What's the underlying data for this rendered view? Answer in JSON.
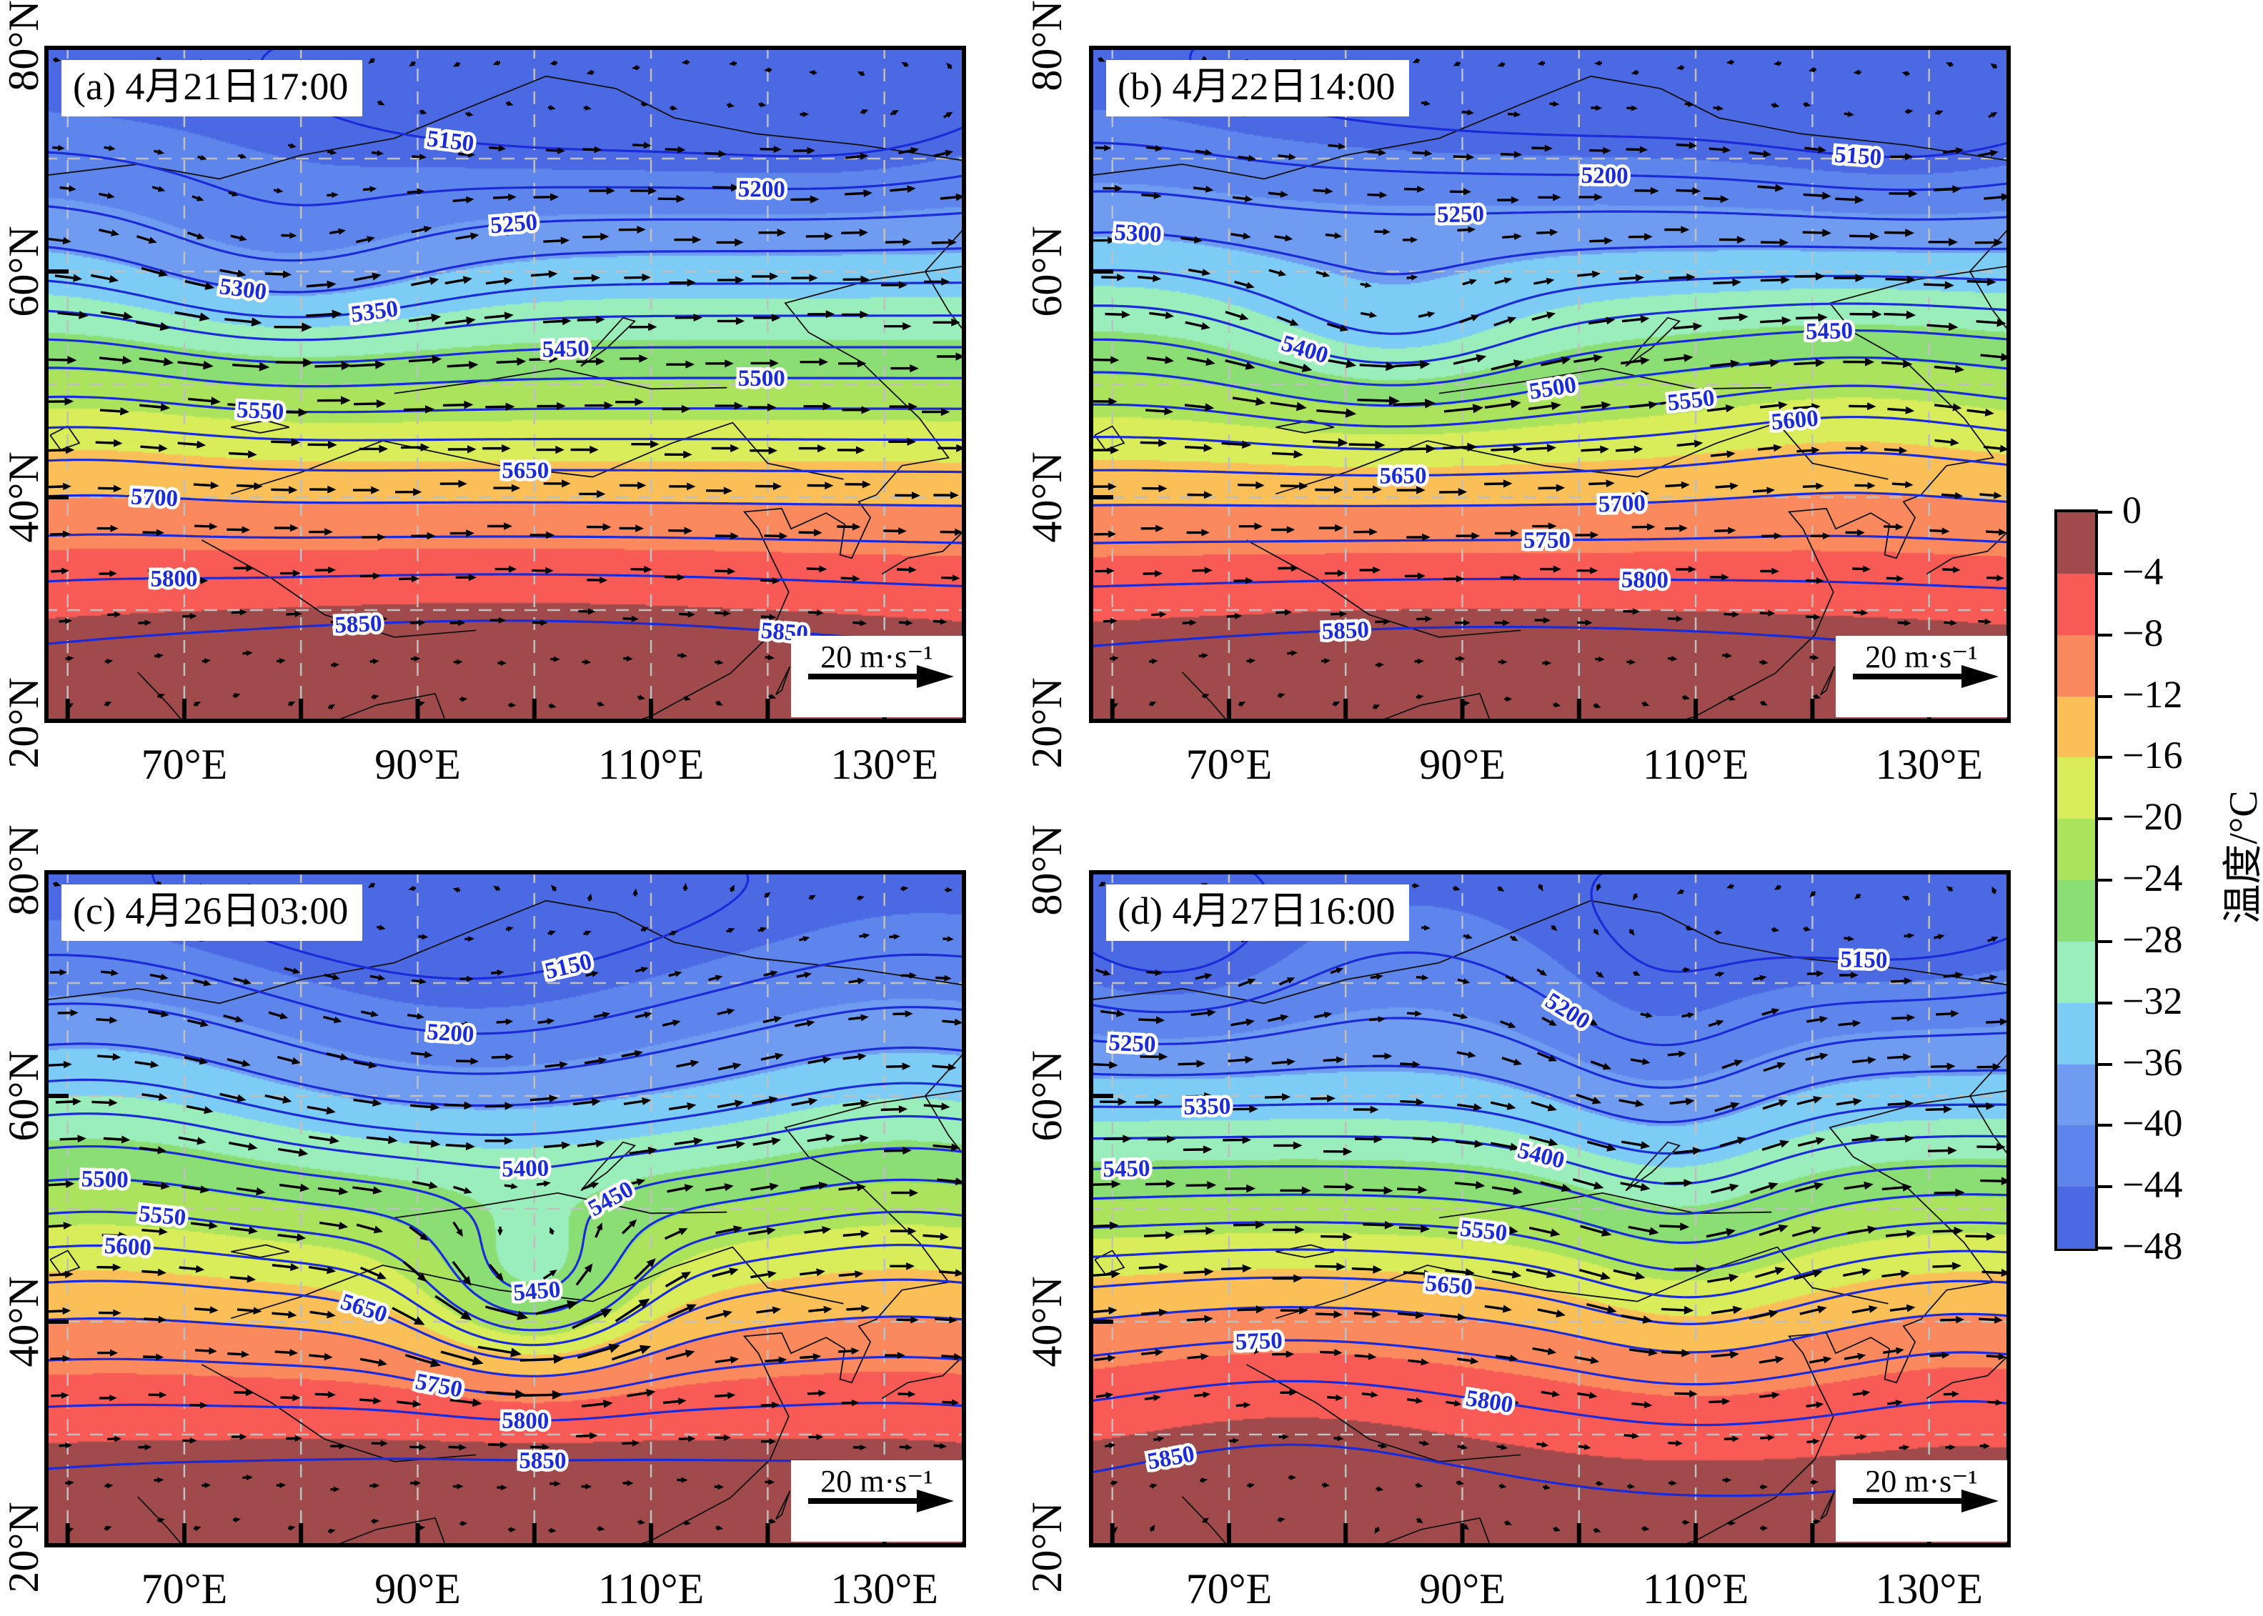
{
  "chart_data": {
    "type": "heatmap",
    "panels": [
      {
        "id": "a",
        "title": "(a) 4月21日17:00",
        "contour_interval_gpm": 50,
        "contour_labels": [
          {
            "value": 5150,
            "u": 0.45,
            "v": 0.06
          },
          {
            "value": 5200,
            "u": 0.78,
            "v": 0.2
          },
          {
            "value": 5250,
            "u": 0.5,
            "v": 0.12
          },
          {
            "value": 5300,
            "u": 0.22,
            "v": 0.3
          },
          {
            "value": 5350,
            "u": 0.34,
            "v": 0.22
          },
          {
            "value": 5450,
            "u": 0.56,
            "v": 0.3
          },
          {
            "value": 5500,
            "u": 0.78,
            "v": 0.26
          },
          {
            "value": 5550,
            "u": 0.24,
            "v": 0.44
          },
          {
            "value": 5650,
            "u": 0.52,
            "v": 0.56
          },
          {
            "value": 5700,
            "u": 0.12,
            "v": 0.66
          },
          {
            "value": 5800,
            "u": 0.14,
            "v": 0.8
          },
          {
            "value": 5850,
            "u": 0.34,
            "v": 0.93
          },
          {
            "value": 5850,
            "u": 0.8,
            "v": 0.87
          }
        ]
      },
      {
        "id": "b",
        "title": "(b) 4月22日14:00",
        "contour_interval_gpm": 50,
        "contour_labels": [
          {
            "value": 5150,
            "u": 0.84,
            "v": 0.1
          },
          {
            "value": 5200,
            "u": 0.56,
            "v": 0.13
          },
          {
            "value": 5250,
            "u": 0.4,
            "v": 0.12
          },
          {
            "value": 5300,
            "u": 0.06,
            "v": 0.06
          },
          {
            "value": 5400,
            "u": 0.24,
            "v": 0.42
          },
          {
            "value": 5450,
            "u": 0.8,
            "v": 0.16
          },
          {
            "value": 5500,
            "u": 0.48,
            "v": 0.33
          },
          {
            "value": 5550,
            "u": 0.64,
            "v": 0.38
          },
          {
            "value": 5600,
            "u": 0.76,
            "v": 0.42
          },
          {
            "value": 5650,
            "u": 0.34,
            "v": 0.68
          },
          {
            "value": 5700,
            "u": 0.58,
            "v": 0.66
          },
          {
            "value": 5750,
            "u": 0.5,
            "v": 0.8
          },
          {
            "value": 5800,
            "u": 0.6,
            "v": 0.9
          },
          {
            "value": 5850,
            "u": 0.28,
            "v": 0.93
          }
        ]
      },
      {
        "id": "c",
        "title": "(c) 4月26日03:00",
        "contour_interval_gpm": 50,
        "contour_labels": [
          {
            "value": 5150,
            "u": 0.56,
            "v": 0.1
          },
          {
            "value": 5200,
            "u": 0.44,
            "v": 0.2
          },
          {
            "value": 5400,
            "u": 0.52,
            "v": 0.34
          },
          {
            "value": 5450,
            "u": 0.62,
            "v": 0.5
          },
          {
            "value": 5450,
            "u": 0.54,
            "v": 0.7
          },
          {
            "value": 5500,
            "u": 0.07,
            "v": 0.36
          },
          {
            "value": 5550,
            "u": 0.13,
            "v": 0.48
          },
          {
            "value": 5600,
            "u": 0.09,
            "v": 0.52
          },
          {
            "value": 5650,
            "u": 0.34,
            "v": 0.68
          },
          {
            "value": 5750,
            "u": 0.42,
            "v": 0.82
          },
          {
            "value": 5800,
            "u": 0.52,
            "v": 0.88
          },
          {
            "value": 5850,
            "u": 0.54,
            "v": 0.95
          }
        ]
      },
      {
        "id": "d",
        "title": "(d) 4月27日16:00",
        "contour_interval_gpm": 50,
        "contour_labels": [
          {
            "value": 5150,
            "u": 0.84,
            "v": 0.06
          },
          {
            "value": 5200,
            "u": 0.58,
            "v": 0.07
          },
          {
            "value": 5250,
            "u": 0.05,
            "v": 0.24
          },
          {
            "value": 5350,
            "u": 0.13,
            "v": 0.32
          },
          {
            "value": 5400,
            "u": 0.5,
            "v": 0.36
          },
          {
            "value": 5450,
            "u": 0.04,
            "v": 0.48
          },
          {
            "value": 5550,
            "u": 0.42,
            "v": 0.62
          },
          {
            "value": 5650,
            "u": 0.38,
            "v": 0.78
          },
          {
            "value": 5750,
            "u": 0.18,
            "v": 0.64
          },
          {
            "value": 5800,
            "u": 0.42,
            "v": 0.92
          },
          {
            "value": 5850,
            "u": 0.1,
            "v": 0.96
          }
        ]
      }
    ],
    "field_model_estimate": {
      "a": {
        "height_features": [
          {
            "a": -70,
            "u": 0.26,
            "v": 0.33,
            "su": 0.13,
            "sv": 0.1
          },
          {
            "a": -55,
            "u": 0.6,
            "v": 0.1,
            "su": 0.22,
            "sv": 0.1
          },
          {
            "a": -40,
            "u": 0.88,
            "v": 0.1,
            "su": 0.12,
            "sv": 0.09
          },
          {
            "a": 35,
            "u": 0.5,
            "v": 0.95,
            "su": 0.35,
            "sv": 0.16
          },
          {
            "a": 22,
            "u": 0.04,
            "v": 0.52,
            "su": 0.11,
            "sv": 0.16
          }
        ],
        "temp_features": [
          {
            "a": 3,
            "u": 0.82,
            "v": 0.99,
            "su": 0.1,
            "sv": 0.05
          },
          {
            "a": 2,
            "u": 0.35,
            "v": 1.0,
            "su": 0.12,
            "sv": 0.05
          }
        ]
      },
      "b": {
        "height_features": [
          {
            "a": -80,
            "u": 0.33,
            "v": 0.44,
            "su": 0.11,
            "sv": 0.085
          },
          {
            "a": -50,
            "u": 0.55,
            "v": 0.07,
            "su": 0.3,
            "sv": 0.09
          },
          {
            "a": -45,
            "u": 0.9,
            "v": 0.12,
            "su": 0.13,
            "sv": 0.1
          },
          {
            "a": 38,
            "u": 0.83,
            "v": 0.52,
            "su": 0.13,
            "sv": 0.12
          },
          {
            "a": 30,
            "u": 0.45,
            "v": 0.95,
            "su": 0.35,
            "sv": 0.14
          },
          {
            "a": 18,
            "u": 0.03,
            "v": 0.3,
            "su": 0.1,
            "sv": 0.18
          }
        ],
        "temp_features": [
          {
            "a": 3,
            "u": 0.88,
            "v": 0.98,
            "su": 0.09,
            "sv": 0.05
          }
        ]
      },
      "c": {
        "height_features": [
          {
            "a": -55,
            "u": 0.47,
            "v": 0.28,
            "su": 0.17,
            "sv": 0.13
          },
          {
            "a": -190,
            "u": 0.53,
            "v": 0.62,
            "su": 0.085,
            "sv": 0.085
          },
          {
            "a": -45,
            "u": 0.4,
            "v": 0.04,
            "su": 0.22,
            "sv": 0.09
          },
          {
            "a": 42,
            "u": 0.06,
            "v": 0.38,
            "su": 0.13,
            "sv": 0.22
          },
          {
            "a": 38,
            "u": 0.93,
            "v": 0.42,
            "su": 0.11,
            "sv": 0.22
          },
          {
            "a": 28,
            "u": 0.5,
            "v": 0.98,
            "su": 0.4,
            "sv": 0.14
          }
        ],
        "temp_features": [
          {
            "a": 3,
            "u": 0.52,
            "v": 1.0,
            "su": 0.1,
            "sv": 0.05
          },
          {
            "a": 2.5,
            "u": 0.78,
            "v": 1.0,
            "su": 0.08,
            "sv": 0.05
          }
        ]
      },
      "d": {
        "height_features": [
          {
            "a": -70,
            "u": 0.62,
            "v": 0.3,
            "su": 0.1,
            "sv": 0.16
          },
          {
            "a": -48,
            "u": 0.65,
            "v": 0.58,
            "su": 0.085,
            "sv": 0.12
          },
          {
            "a": -52,
            "u": 0.09,
            "v": 0.13,
            "su": 0.1,
            "sv": 0.09
          },
          {
            "a": -45,
            "u": 0.88,
            "v": 0.08,
            "su": 0.12,
            "sv": 0.09
          },
          {
            "a": 40,
            "u": 0.22,
            "v": 0.72,
            "su": 0.18,
            "sv": 0.16
          },
          {
            "a": 26,
            "u": 0.95,
            "v": 0.65,
            "su": 0.1,
            "sv": 0.15
          },
          {
            "a": 18,
            "u": 0.33,
            "v": 0.14,
            "su": 0.12,
            "sv": 0.1
          }
        ],
        "temp_features": [
          {
            "a": 3,
            "u": 0.72,
            "v": 1.0,
            "su": 0.1,
            "sv": 0.05
          }
        ]
      }
    },
    "x_axis": {
      "tick_lons": [
        70,
        90,
        110,
        130
      ],
      "tick_labels": [
        "70°E",
        "90°E",
        "110°E",
        "130°E"
      ]
    },
    "y_axis": {
      "tick_lats": [
        80,
        60,
        40,
        20
      ],
      "tick_labels": [
        "80°N",
        "60°N",
        "40°N",
        "20°N"
      ]
    },
    "wind_legend": {
      "label": "20 m·s⁻¹",
      "speed_m_s": 20
    },
    "colorbar": {
      "title": "温度/°C",
      "tick_values": [
        0,
        -4,
        -8,
        -12,
        -16,
        -20,
        -24,
        -28,
        -32,
        -36,
        -40,
        -44,
        -48
      ],
      "tick_labels": [
        "0",
        "−4",
        "−8",
        "−12",
        "−16",
        "−20",
        "−24",
        "−28",
        "−32",
        "−36",
        "−40",
        "−44",
        "−48"
      ],
      "band_colors": [
        "#a04a4c",
        "#f85a56",
        "#fa8a5e",
        "#fbbf58",
        "#d9ed5a",
        "#abe45c",
        "#8ade74",
        "#99eebb",
        "#7dccf6",
        "#6f9cf1",
        "#5e85ec",
        "#4b69e2"
      ]
    }
  }
}
